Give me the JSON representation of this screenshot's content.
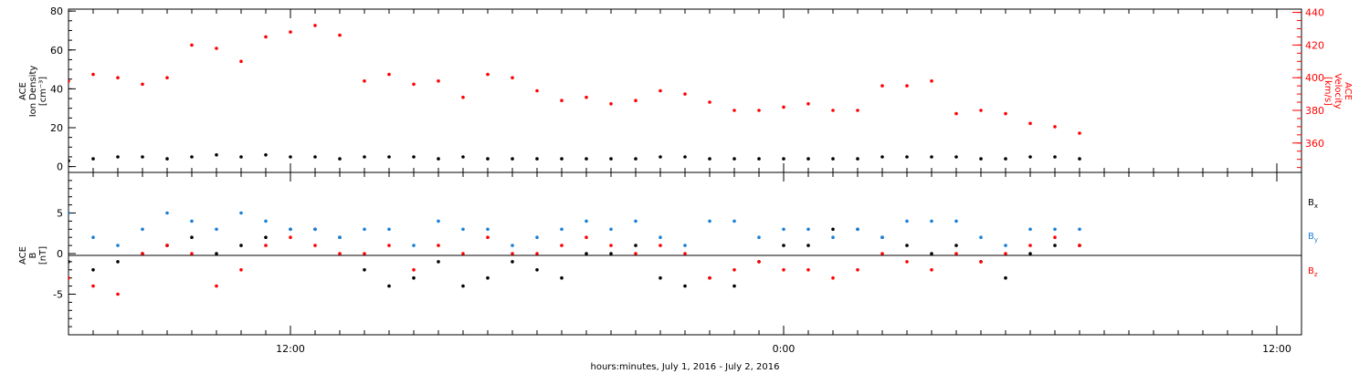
{
  "chart_data": [
    {
      "type": "scatter",
      "panel": "plasma",
      "ylabel_lines": [
        "ACE",
        "Ion Density",
        "[cm⁻³]"
      ],
      "y2label_lines": [
        "ACE",
        "Velocity",
        "[km/s]"
      ],
      "y_ticks": [
        "0",
        "20",
        "40",
        "60",
        "80"
      ],
      "y_lim": [
        -3,
        81
      ],
      "y2_ticks": [
        "360",
        "380",
        "400",
        "420",
        "440"
      ],
      "y2_lim": [
        342,
        442
      ],
      "series": [
        {
          "color": "#000000",
          "axis": "left",
          "x_hours": [
            0,
            1,
            2,
            3,
            4,
            5,
            6,
            7,
            8,
            9,
            10,
            11,
            12,
            13,
            14,
            15,
            16,
            17,
            18,
            19,
            20,
            21,
            22,
            23,
            24,
            25,
            26,
            27,
            28,
            29,
            30,
            31,
            32,
            33,
            34,
            35,
            36,
            37,
            38,
            39,
            40,
            41
          ],
          "values": [
            3,
            4,
            5,
            5,
            4,
            5,
            6,
            5,
            6,
            5,
            5,
            4,
            5,
            5,
            5,
            4,
            5,
            4,
            4,
            4,
            4,
            4,
            4,
            4,
            5,
            5,
            4,
            4,
            4,
            4,
            4,
            4,
            4,
            5,
            5,
            5,
            5,
            4,
            4,
            5,
            5,
            4
          ]
        },
        {
          "color": "#ff0000",
          "axis": "right",
          "x_hours": [
            0,
            1,
            2,
            3,
            4,
            5,
            6,
            7,
            8,
            9,
            10,
            11,
            12,
            13,
            14,
            15,
            16,
            17,
            18,
            19,
            20,
            21,
            22,
            23,
            24,
            25,
            26,
            27,
            28,
            29,
            30,
            31,
            32,
            33,
            34,
            35,
            36,
            37,
            38,
            39,
            40,
            41
          ],
          "values": [
            398,
            402,
            400,
            396,
            400,
            420,
            418,
            410,
            425,
            428,
            432,
            426,
            398,
            402,
            396,
            398,
            388,
            402,
            400,
            392,
            386,
            388,
            384,
            386,
            392,
            390,
            385,
            380,
            380,
            382,
            384,
            380,
            380,
            395,
            395,
            398,
            378,
            380,
            378,
            372,
            370,
            366
          ]
        }
      ]
    },
    {
      "type": "scatter",
      "panel": "magnetic",
      "ylabel_lines": [
        "ACE",
        "B",
        "[nT]"
      ],
      "y_ticks": [
        "-5",
        "0",
        "5"
      ],
      "y_lim": [
        -10,
        10
      ],
      "legend": [
        {
          "label": "B",
          "sub": "x",
          "color": "#000000"
        },
        {
          "label": "B",
          "sub": "y",
          "color": "#1a7fd6"
        },
        {
          "label": "B",
          "sub": "z",
          "color": "#ff0000"
        }
      ],
      "series": [
        {
          "color": "#000000",
          "x_hours": [
            0,
            1,
            2,
            3,
            4,
            5,
            6,
            7,
            8,
            9,
            10,
            11,
            12,
            13,
            14,
            15,
            16,
            17,
            18,
            19,
            20,
            21,
            22,
            23,
            24,
            25,
            26,
            27,
            28,
            29,
            30,
            31,
            32,
            33,
            34,
            35,
            36,
            37,
            38,
            39,
            40,
            41
          ],
          "values": [
            -1,
            -2,
            -1,
            0,
            1,
            2,
            0,
            1,
            2,
            3,
            3,
            2,
            -2,
            -4,
            -3,
            -1,
            -4,
            -3,
            -1,
            -2,
            -3,
            0,
            0,
            1,
            -3,
            -4,
            -3,
            -4,
            -1,
            1,
            1,
            3,
            3,
            2,
            1,
            0,
            1,
            -1,
            -3,
            0,
            1,
            1
          ]
        },
        {
          "color": "#1a7fd6",
          "x_hours": [
            0,
            1,
            2,
            3,
            4,
            5,
            6,
            7,
            8,
            9,
            10,
            11,
            12,
            13,
            14,
            15,
            16,
            17,
            18,
            19,
            20,
            21,
            22,
            23,
            24,
            25,
            26,
            27,
            28,
            29,
            30,
            31,
            32,
            33,
            34,
            35,
            36,
            37,
            38,
            39,
            40,
            41
          ],
          "values": [
            5,
            2,
            1,
            3,
            5,
            4,
            3,
            5,
            4,
            3,
            3,
            2,
            3,
            3,
            1,
            4,
            3,
            3,
            1,
            2,
            3,
            4,
            3,
            4,
            2,
            1,
            4,
            4,
            2,
            3,
            3,
            2,
            3,
            2,
            4,
            4,
            4,
            2,
            1,
            3,
            3,
            3
          ]
        },
        {
          "color": "#ff0000",
          "x_hours": [
            0,
            1,
            2,
            3,
            4,
            5,
            6,
            7,
            8,
            9,
            10,
            11,
            12,
            13,
            14,
            15,
            16,
            17,
            18,
            19,
            20,
            21,
            22,
            23,
            24,
            25,
            26,
            27,
            28,
            29,
            30,
            31,
            32,
            33,
            34,
            35,
            36,
            37,
            38,
            39,
            40,
            41
          ],
          "values": [
            -3,
            -4,
            -5,
            0,
            1,
            0,
            -4,
            -2,
            1,
            2,
            1,
            0,
            0,
            1,
            -2,
            1,
            0,
            2,
            0,
            0,
            1,
            2,
            1,
            0,
            1,
            0,
            -3,
            -2,
            -1,
            -2,
            -2,
            -3,
            -2,
            0,
            -1,
            -2,
            0,
            -1,
            0,
            1,
            2,
            1
          ]
        }
      ]
    }
  ],
  "x_axis": {
    "ticks": [
      "12:00",
      "0:00",
      "12:00"
    ],
    "tick_hours": [
      9,
      29,
      49
    ],
    "range_hours": [
      0,
      50
    ],
    "label": "hours:minutes, July  1, 2016 - July  2, 2016"
  }
}
